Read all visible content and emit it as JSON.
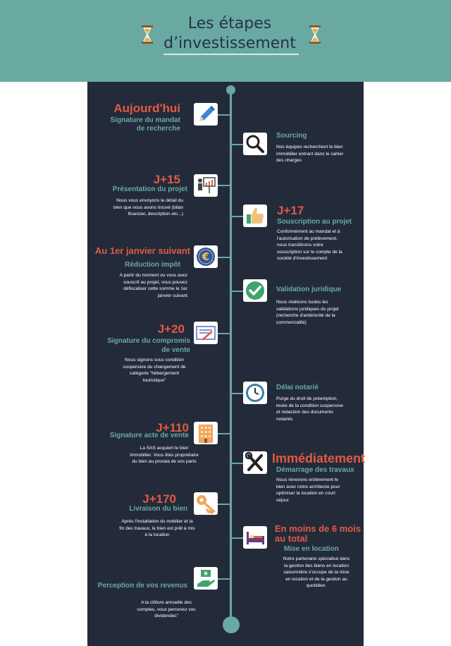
{
  "header": {
    "title_line1": "Les étapes",
    "title_line2": "d’investissement"
  },
  "steps": [
    {
      "time": "Aujourd'hui",
      "title_lines": [
        "Signature du mandat",
        "de recherche"
      ],
      "icon": "pen-icon"
    },
    {
      "title": "Sourcing",
      "desc_lines": [
        "Nos équipes recherchent le bien",
        "immobilier entrant dans le cahier",
        "des charges"
      ],
      "icon": "magnifier-icon"
    },
    {
      "time": "J+15",
      "title": "Présentation du projet",
      "desc_lines": [
        "Nous vous envoyons le détail du",
        "bien que nous avons trouvé (bilan",
        "financier, description etc...)"
      ],
      "icon": "presentation-icon"
    },
    {
      "time": "J+17",
      "title": "Souscription au projet",
      "desc_lines": [
        "Conformément au mandat et à",
        "l'autorisation de prélèvement,",
        "nous transférons votre",
        "souscription sur le compte de la",
        "société d'investissement"
      ],
      "icon": "thumbs-up-icon"
    },
    {
      "time": "Au 1er janvier suivant",
      "title": "Réduction impôt",
      "desc_lines": [
        "A partir du moment ou vous avez",
        "souscrit au projet, vous pouvez",
        "défiscaliser cette somme le 1er",
        "janvier suivant"
      ],
      "icon": "euro-icon"
    },
    {
      "title": "Validation juridique",
      "desc_lines": [
        "Nous réalisons toutes les",
        "validations juridiques du projet",
        "(recherche d'antériorité de la",
        "commercialité)"
      ],
      "icon": "check-icon"
    },
    {
      "time": "J+20",
      "title_lines": [
        "Signature du compromis",
        "de vente"
      ],
      "desc_lines": [
        "Nous signons sous condition",
        "suspensive du changement de",
        "catégorie \"hébergement",
        "touristique\""
      ],
      "icon": "contract-icon"
    },
    {
      "title": "Délai notarié",
      "desc_lines": [
        "Purge du droit de préemption,",
        "levée de la condition suspensive",
        "et rédaction des documents",
        "notariés"
      ],
      "icon": "clock-icon"
    },
    {
      "time": "J+110",
      "title": "Signature acte de vente",
      "desc_lines": [
        "La SAS acquiert le bien",
        "immobilier. Vous êtes propriétaire",
        "du bien au prorata de vos parts"
      ],
      "icon": "building-icon"
    },
    {
      "time": "Immédiatement",
      "title": "Démarrage des travaux",
      "desc_lines": [
        "Nous rénovons entièrement le",
        "bien avec notre architecte pour",
        "optimiser la location en court",
        "séjour"
      ],
      "icon": "tools-icon"
    },
    {
      "time": "J+170",
      "title": "Livraison du bien",
      "desc_lines": [
        "Après l'installation du mobilier et la",
        "fin des travaux, le bien est prêt à mis",
        "à la location"
      ],
      "icon": "key-icon"
    },
    {
      "time_lines": [
        "En moins de 6 mois",
        "au total"
      ],
      "title": "Mise en location",
      "desc_lines": [
        "Notre partenaire spécialisé dans",
        "la gestion des biens en location",
        "saisonnière s'occupe de la mise",
        "en location et de la gestion au",
        "quotidien."
      ],
      "icon": "bed-icon"
    },
    {
      "title": "Perception de vos revenus",
      "desc_lines": [
        "A la clôture annuelle des",
        "comptes, vous percevez vos",
        "dividendes\""
      ],
      "icon": "money-hand-icon"
    }
  ],
  "colors": {
    "header": "#6aa9a2",
    "panel": "#232b3a",
    "accent_red": "#e25a43",
    "accent_teal": "#6aa9a2"
  }
}
